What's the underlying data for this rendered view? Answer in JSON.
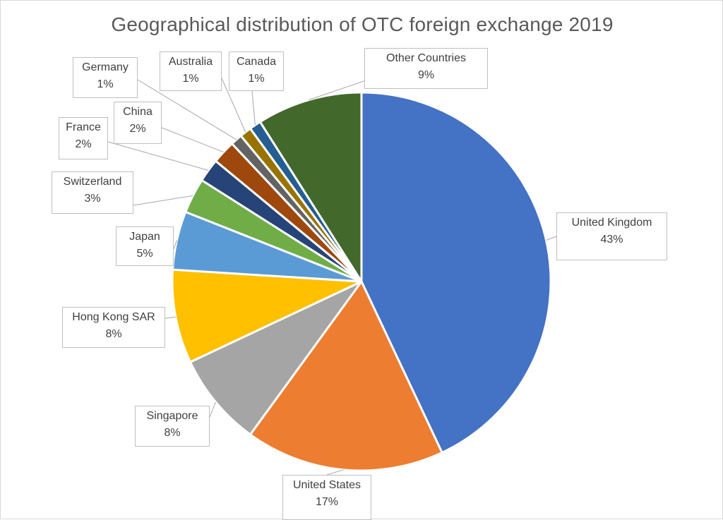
{
  "chart_data": {
    "type": "pie",
    "title": "Geographical distribution of OTC foreign exchange 2019",
    "slices": [
      {
        "name": "United Kingdom",
        "value": 43,
        "label": "43%",
        "color": "#4472C4"
      },
      {
        "name": "United States",
        "value": 17,
        "label": "17%",
        "color": "#ED7D31"
      },
      {
        "name": "Singapore",
        "value": 8,
        "label": "8%",
        "color": "#A5A5A5"
      },
      {
        "name": "Hong Kong SAR",
        "value": 8,
        "label": "8%",
        "color": "#FFC000"
      },
      {
        "name": "Japan",
        "value": 5,
        "label": "5%",
        "color": "#5B9BD5"
      },
      {
        "name": "Switzerland",
        "value": 3,
        "label": "3%",
        "color": "#70AD47"
      },
      {
        "name": "France",
        "value": 2,
        "label": "2%",
        "color": "#264478"
      },
      {
        "name": "China",
        "value": 2,
        "label": "2%",
        "color": "#9E480E"
      },
      {
        "name": "Germany",
        "value": 1,
        "label": "1%",
        "color": "#636363"
      },
      {
        "name": "Australia",
        "value": 1,
        "label": "1%",
        "color": "#997300"
      },
      {
        "name": "Canada",
        "value": 1,
        "label": "1%",
        "color": "#255E91"
      },
      {
        "name": "Other Countries",
        "value": 9,
        "label": "9%",
        "color": "#43682B"
      }
    ]
  }
}
